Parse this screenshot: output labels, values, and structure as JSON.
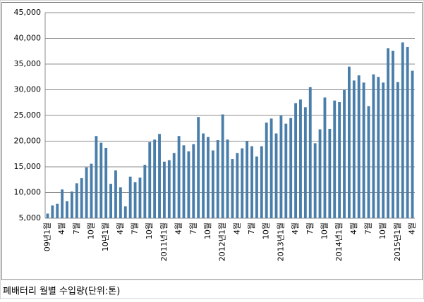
{
  "chart_data": {
    "type": "bar",
    "categories": [
      "09년1월",
      null,
      null,
      "4월",
      null,
      null,
      "7월",
      null,
      null,
      "10월",
      null,
      null,
      "10년1월",
      null,
      null,
      "4월",
      null,
      null,
      "7월",
      null,
      null,
      "10월",
      null,
      null,
      "2011년1월",
      null,
      null,
      "4월",
      null,
      null,
      "7월",
      null,
      null,
      "10월",
      null,
      null,
      "2012년1월",
      null,
      null,
      "4월",
      null,
      null,
      "7월",
      null,
      null,
      "10월",
      null,
      null,
      "2013년1월",
      null,
      null,
      "4월",
      null,
      null,
      "7월",
      null,
      null,
      "10월",
      null,
      null,
      "2014년1월",
      null,
      null,
      "4월",
      null,
      null,
      "7월",
      null,
      null,
      "10월",
      null,
      null,
      "2015년1월",
      null,
      null,
      "4월"
    ],
    "values": [
      5900,
      7500,
      7800,
      10600,
      8300,
      10200,
      11800,
      12800,
      14900,
      15600,
      21000,
      19700,
      18700,
      11700,
      14300,
      11000,
      7300,
      13100,
      12000,
      12900,
      15400,
      19800,
      20300,
      21400,
      16000,
      16300,
      17700,
      21000,
      19200,
      18000,
      19400,
      24700,
      21500,
      20800,
      18200,
      20200,
      25200,
      20300,
      16500,
      17700,
      18600,
      20000,
      19000,
      17000,
      19000,
      23600,
      24400,
      21500,
      25000,
      23400,
      24500,
      27400,
      28100,
      26600,
      30500,
      19600,
      22300,
      28500,
      22400,
      27900,
      27600,
      30000,
      34500,
      31800,
      32800,
      31400,
      26800,
      33000,
      32500,
      31400,
      38100,
      37600,
      31500,
      39200,
      38300,
      33700
    ],
    "color": "#4a7eaa",
    "ylim": [
      5000,
      45000
    ],
    "yticks": [
      {
        "value": 5000,
        "label": "5,000"
      },
      {
        "value": 10000,
        "label": "10,000"
      },
      {
        "value": 15000,
        "label": "15,000"
      },
      {
        "value": 20000,
        "label": "20,000"
      },
      {
        "value": 25000,
        "label": "25,000"
      },
      {
        "value": 30000,
        "label": "30,000"
      },
      {
        "value": 35000,
        "label": "35,000"
      },
      {
        "value": 40000,
        "label": "40,000"
      },
      {
        "value": 45000,
        "label": "45,000"
      }
    ],
    "grid": true
  },
  "caption": "폐배터리 월별 수입량(단위:톤)"
}
